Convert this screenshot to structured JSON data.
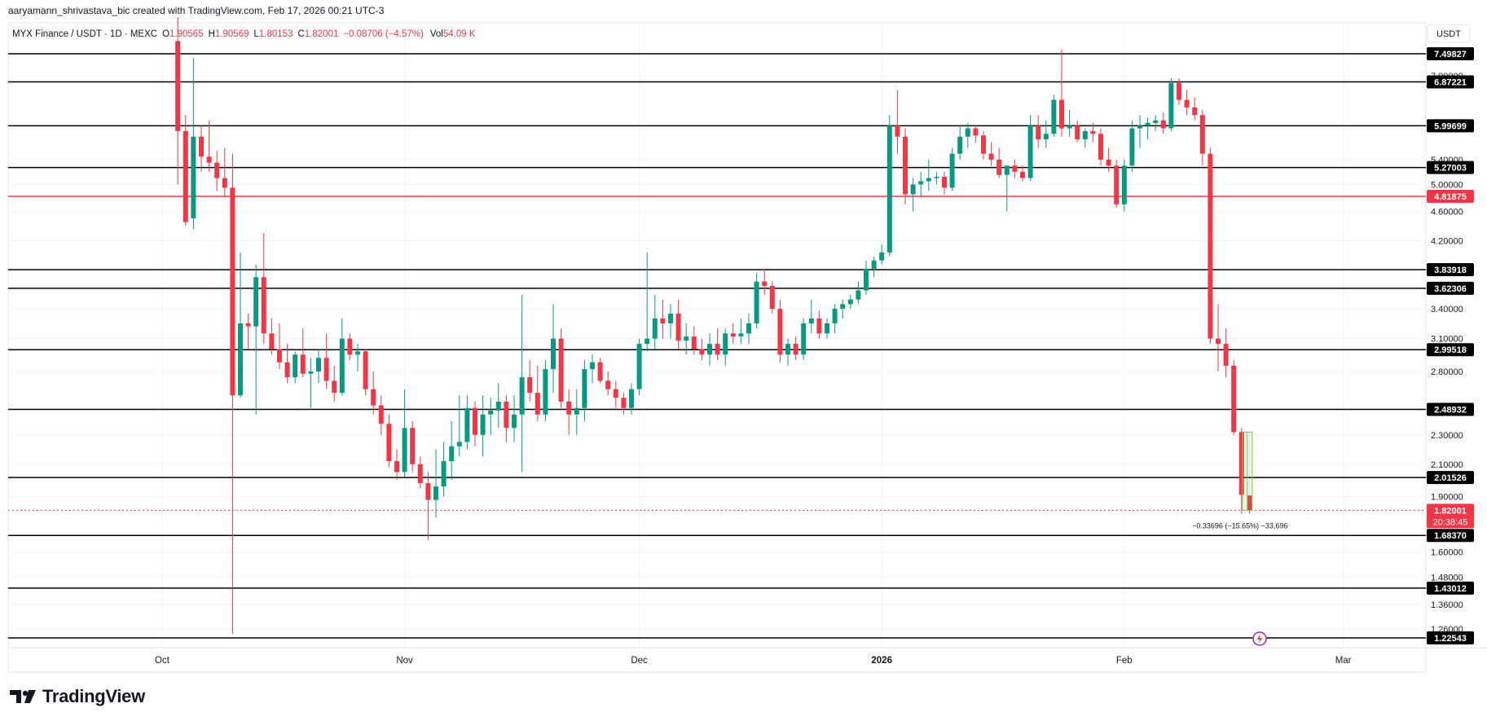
{
  "attribution": "aaryamann_shrivastava_bic created with TradingView.com, Feb 17, 2026 00:21 UTC-3",
  "legend": {
    "symbol": "MYX Finance / USDT · 1D · MEXC",
    "o_label": "O",
    "o_value": "1.90565",
    "h_label": "H",
    "h_value": "1.90569",
    "l_label": "L",
    "l_value": "1.80153",
    "c_label": "C",
    "c_value": "1.82001",
    "change": "−0.08706 (−4.57%)",
    "vol_label": "Vol",
    "vol_value": "54.09 K"
  },
  "currency_label": "USDT",
  "brand": "TradingView",
  "measure_label": "−0.33696 (−15.65%) −33,696",
  "colors": {
    "up": "#089981",
    "down": "#f23645",
    "axis_text": "#131722",
    "grid": "#f0f3fa",
    "level_line": "#000000",
    "red_line": "#f23645"
  },
  "chart_data": {
    "type": "candlestick",
    "x_ticks": [
      {
        "label": "Oct",
        "date": "2025-10-01"
      },
      {
        "label": "Nov",
        "date": "2025-11-01"
      },
      {
        "label": "Dec",
        "date": "2025-12-01"
      },
      {
        "label": "2026",
        "date": "2026-01-01"
      },
      {
        "label": "Feb",
        "date": "2026-02-01"
      },
      {
        "label": "Mar",
        "date": "2026-03-01"
      }
    ],
    "y_ticks": [
      "7.00000",
      "5.40000",
      "5.00000",
      "4.60000",
      "4.20000",
      "3.40000",
      "3.10000",
      "2.80000",
      "2.30000",
      "2.10000",
      "1.90000",
      "1.60000",
      "1.48000",
      "1.36000",
      "1.26000"
    ],
    "levels": [
      {
        "label": "7.49827",
        "value": 7.49827
      },
      {
        "label": "6.87221",
        "value": 6.87221
      },
      {
        "label": "5.99699",
        "value": 5.99699
      },
      {
        "label": "5.27003",
        "value": 5.27003
      },
      {
        "label": "3.83918",
        "value": 3.83918
      },
      {
        "label": "3.62306",
        "value": 3.62306
      },
      {
        "label": "2.99518",
        "value": 2.99518
      },
      {
        "label": "2.48932",
        "value": 2.48932
      },
      {
        "label": "2.01526",
        "value": 2.01526
      },
      {
        "label": "1.68370",
        "value": 1.6837
      },
      {
        "label": "1.43012",
        "value": 1.43012
      },
      {
        "label": "1.22543",
        "value": 1.22543
      }
    ],
    "red_level": {
      "label": "4.81875",
      "value": 4.81875
    },
    "current": {
      "label": "1.82001",
      "value": 1.82001,
      "countdown": "20:38:45"
    },
    "candles": [
      {
        "d": "2025-10-03",
        "o": 7.8,
        "h": 8.4,
        "l": 5.0,
        "c": 5.9
      },
      {
        "d": "2025-10-04",
        "o": 5.9,
        "h": 6.2,
        "l": 4.4,
        "c": 4.45
      },
      {
        "d": "2025-10-05",
        "o": 4.5,
        "h": 7.4,
        "l": 4.35,
        "c": 5.8
      },
      {
        "d": "2025-10-06",
        "o": 5.8,
        "h": 6.0,
        "l": 5.2,
        "c": 5.45
      },
      {
        "d": "2025-10-07",
        "o": 5.45,
        "h": 6.1,
        "l": 5.2,
        "c": 5.35
      },
      {
        "d": "2025-10-08",
        "o": 5.35,
        "h": 5.55,
        "l": 4.9,
        "c": 5.1
      },
      {
        "d": "2025-10-09",
        "o": 5.1,
        "h": 5.6,
        "l": 4.8,
        "c": 4.95
      },
      {
        "d": "2025-10-10",
        "o": 4.95,
        "h": 5.5,
        "l": 1.24,
        "c": 2.6
      },
      {
        "d": "2025-10-11",
        "o": 2.6,
        "h": 4.05,
        "l": 2.58,
        "c": 3.25
      },
      {
        "d": "2025-10-12",
        "o": 3.25,
        "h": 3.35,
        "l": 3.0,
        "c": 3.22
      },
      {
        "d": "2025-10-13",
        "o": 3.22,
        "h": 3.9,
        "l": 2.45,
        "c": 3.75
      },
      {
        "d": "2025-10-14",
        "o": 3.75,
        "h": 4.3,
        "l": 3.05,
        "c": 3.15
      },
      {
        "d": "2025-10-15",
        "o": 3.15,
        "h": 3.3,
        "l": 2.95,
        "c": 3.0
      },
      {
        "d": "2025-10-16",
        "o": 3.0,
        "h": 3.25,
        "l": 2.82,
        "c": 2.88
      },
      {
        "d": "2025-10-17",
        "o": 2.88,
        "h": 3.05,
        "l": 2.7,
        "c": 2.75
      },
      {
        "d": "2025-10-18",
        "o": 2.75,
        "h": 2.98,
        "l": 2.7,
        "c": 2.95
      },
      {
        "d": "2025-10-19",
        "o": 2.95,
        "h": 3.2,
        "l": 2.75,
        "c": 2.78
      },
      {
        "d": "2025-10-20",
        "o": 2.78,
        "h": 2.92,
        "l": 2.5,
        "c": 2.8
      },
      {
        "d": "2025-10-21",
        "o": 2.8,
        "h": 3.0,
        "l": 2.7,
        "c": 2.92
      },
      {
        "d": "2025-10-22",
        "o": 2.92,
        "h": 3.15,
        "l": 2.65,
        "c": 2.72
      },
      {
        "d": "2025-10-23",
        "o": 2.72,
        "h": 2.85,
        "l": 2.55,
        "c": 2.62
      },
      {
        "d": "2025-10-24",
        "o": 2.62,
        "h": 3.3,
        "l": 2.6,
        "c": 3.1
      },
      {
        "d": "2025-10-25",
        "o": 3.1,
        "h": 3.15,
        "l": 2.9,
        "c": 2.95
      },
      {
        "d": "2025-10-26",
        "o": 2.95,
        "h": 3.05,
        "l": 2.8,
        "c": 2.98
      },
      {
        "d": "2025-10-27",
        "o": 2.98,
        "h": 3.0,
        "l": 2.6,
        "c": 2.65
      },
      {
        "d": "2025-10-28",
        "o": 2.65,
        "h": 2.8,
        "l": 2.45,
        "c": 2.52
      },
      {
        "d": "2025-10-29",
        "o": 2.52,
        "h": 2.6,
        "l": 2.3,
        "c": 2.38
      },
      {
        "d": "2025-10-30",
        "o": 2.38,
        "h": 2.45,
        "l": 2.08,
        "c": 2.12
      },
      {
        "d": "2025-10-31",
        "o": 2.12,
        "h": 2.2,
        "l": 2.0,
        "c": 2.05
      },
      {
        "d": "2025-11-01",
        "o": 2.05,
        "h": 2.65,
        "l": 2.02,
        "c": 2.35
      },
      {
        "d": "2025-11-02",
        "o": 2.35,
        "h": 2.4,
        "l": 2.05,
        "c": 2.1
      },
      {
        "d": "2025-11-03",
        "o": 2.1,
        "h": 2.15,
        "l": 1.95,
        "c": 1.98
      },
      {
        "d": "2025-11-04",
        "o": 1.98,
        "h": 2.05,
        "l": 1.66,
        "c": 1.88
      },
      {
        "d": "2025-11-05",
        "o": 1.88,
        "h": 2.2,
        "l": 1.78,
        "c": 1.96
      },
      {
        "d": "2025-11-06",
        "o": 1.96,
        "h": 2.25,
        "l": 1.9,
        "c": 2.12
      },
      {
        "d": "2025-11-07",
        "o": 2.12,
        "h": 2.4,
        "l": 2.0,
        "c": 2.22
      },
      {
        "d": "2025-11-08",
        "o": 2.22,
        "h": 2.6,
        "l": 2.15,
        "c": 2.25
      },
      {
        "d": "2025-11-09",
        "o": 2.25,
        "h": 2.6,
        "l": 2.2,
        "c": 2.5
      },
      {
        "d": "2025-11-10",
        "o": 2.5,
        "h": 2.55,
        "l": 2.22,
        "c": 2.3
      },
      {
        "d": "2025-11-11",
        "o": 2.3,
        "h": 2.6,
        "l": 2.15,
        "c": 2.45
      },
      {
        "d": "2025-11-12",
        "o": 2.45,
        "h": 2.58,
        "l": 2.3,
        "c": 2.48
      },
      {
        "d": "2025-11-13",
        "o": 2.48,
        "h": 2.7,
        "l": 2.35,
        "c": 2.55
      },
      {
        "d": "2025-11-14",
        "o": 2.55,
        "h": 2.6,
        "l": 2.25,
        "c": 2.35
      },
      {
        "d": "2025-11-15",
        "o": 2.35,
        "h": 2.6,
        "l": 2.25,
        "c": 2.45
      },
      {
        "d": "2025-11-16",
        "o": 2.45,
        "h": 3.55,
        "l": 2.05,
        "c": 2.75
      },
      {
        "d": "2025-11-17",
        "o": 2.75,
        "h": 2.9,
        "l": 2.55,
        "c": 2.62
      },
      {
        "d": "2025-11-18",
        "o": 2.62,
        "h": 2.85,
        "l": 2.4,
        "c": 2.45
      },
      {
        "d": "2025-11-19",
        "o": 2.45,
        "h": 2.9,
        "l": 2.4,
        "c": 2.82
      },
      {
        "d": "2025-11-20",
        "o": 2.82,
        "h": 3.45,
        "l": 2.62,
        "c": 3.1
      },
      {
        "d": "2025-11-21",
        "o": 3.1,
        "h": 3.2,
        "l": 2.5,
        "c": 2.55
      },
      {
        "d": "2025-11-22",
        "o": 2.55,
        "h": 2.65,
        "l": 2.3,
        "c": 2.45
      },
      {
        "d": "2025-11-23",
        "o": 2.45,
        "h": 2.65,
        "l": 2.3,
        "c": 2.5
      },
      {
        "d": "2025-11-24",
        "o": 2.5,
        "h": 2.9,
        "l": 2.4,
        "c": 2.82
      },
      {
        "d": "2025-11-25",
        "o": 2.82,
        "h": 2.95,
        "l": 2.7,
        "c": 2.88
      },
      {
        "d": "2025-11-26",
        "o": 2.88,
        "h": 2.92,
        "l": 2.7,
        "c": 2.72
      },
      {
        "d": "2025-11-27",
        "o": 2.72,
        "h": 2.8,
        "l": 2.6,
        "c": 2.65
      },
      {
        "d": "2025-11-28",
        "o": 2.65,
        "h": 2.72,
        "l": 2.5,
        "c": 2.58
      },
      {
        "d": "2025-11-29",
        "o": 2.58,
        "h": 2.62,
        "l": 2.45,
        "c": 2.5
      },
      {
        "d": "2025-11-30",
        "o": 2.5,
        "h": 2.7,
        "l": 2.45,
        "c": 2.65
      },
      {
        "d": "2025-12-01",
        "o": 2.65,
        "h": 3.1,
        "l": 2.6,
        "c": 3.05
      },
      {
        "d": "2025-12-02",
        "o": 3.05,
        "h": 4.05,
        "l": 2.98,
        "c": 3.1
      },
      {
        "d": "2025-12-03",
        "o": 3.1,
        "h": 3.55,
        "l": 3.0,
        "c": 3.3
      },
      {
        "d": "2025-12-04",
        "o": 3.3,
        "h": 3.5,
        "l": 3.1,
        "c": 3.25
      },
      {
        "d": "2025-12-05",
        "o": 3.25,
        "h": 3.45,
        "l": 3.1,
        "c": 3.35
      },
      {
        "d": "2025-12-06",
        "o": 3.35,
        "h": 3.5,
        "l": 3.0,
        "c": 3.08
      },
      {
        "d": "2025-12-07",
        "o": 3.08,
        "h": 3.25,
        "l": 2.95,
        "c": 3.12
      },
      {
        "d": "2025-12-08",
        "o": 3.12,
        "h": 3.22,
        "l": 2.95,
        "c": 3.0
      },
      {
        "d": "2025-12-09",
        "o": 3.0,
        "h": 3.1,
        "l": 2.9,
        "c": 2.95
      },
      {
        "d": "2025-12-10",
        "o": 2.95,
        "h": 3.15,
        "l": 2.85,
        "c": 3.05
      },
      {
        "d": "2025-12-11",
        "o": 3.05,
        "h": 3.2,
        "l": 2.9,
        "c": 2.95
      },
      {
        "d": "2025-12-12",
        "o": 2.95,
        "h": 3.2,
        "l": 2.85,
        "c": 3.15
      },
      {
        "d": "2025-12-13",
        "o": 3.15,
        "h": 3.25,
        "l": 3.05,
        "c": 3.12
      },
      {
        "d": "2025-12-14",
        "o": 3.12,
        "h": 3.3,
        "l": 3.05,
        "c": 3.15
      },
      {
        "d": "2025-12-15",
        "o": 3.15,
        "h": 3.35,
        "l": 3.05,
        "c": 3.25
      },
      {
        "d": "2025-12-16",
        "o": 3.25,
        "h": 3.8,
        "l": 3.2,
        "c": 3.7
      },
      {
        "d": "2025-12-17",
        "o": 3.7,
        "h": 3.85,
        "l": 3.55,
        "c": 3.65
      },
      {
        "d": "2025-12-18",
        "o": 3.65,
        "h": 3.7,
        "l": 3.35,
        "c": 3.4
      },
      {
        "d": "2025-12-19",
        "o": 3.4,
        "h": 3.5,
        "l": 2.88,
        "c": 2.95
      },
      {
        "d": "2025-12-20",
        "o": 2.95,
        "h": 3.1,
        "l": 2.85,
        "c": 3.05
      },
      {
        "d": "2025-12-21",
        "o": 3.05,
        "h": 3.12,
        "l": 2.9,
        "c": 2.95
      },
      {
        "d": "2025-12-22",
        "o": 2.95,
        "h": 3.3,
        "l": 2.9,
        "c": 3.25
      },
      {
        "d": "2025-12-23",
        "o": 3.25,
        "h": 3.5,
        "l": 3.15,
        "c": 3.3
      },
      {
        "d": "2025-12-24",
        "o": 3.3,
        "h": 3.38,
        "l": 3.1,
        "c": 3.15
      },
      {
        "d": "2025-12-25",
        "o": 3.15,
        "h": 3.3,
        "l": 3.1,
        "c": 3.25
      },
      {
        "d": "2025-12-26",
        "o": 3.25,
        "h": 3.45,
        "l": 3.15,
        "c": 3.4
      },
      {
        "d": "2025-12-27",
        "o": 3.4,
        "h": 3.5,
        "l": 3.3,
        "c": 3.45
      },
      {
        "d": "2025-12-28",
        "o": 3.45,
        "h": 3.55,
        "l": 3.4,
        "c": 3.5
      },
      {
        "d": "2025-12-29",
        "o": 3.5,
        "h": 3.7,
        "l": 3.45,
        "c": 3.6
      },
      {
        "d": "2025-12-30",
        "o": 3.6,
        "h": 3.95,
        "l": 3.55,
        "c": 3.85
      },
      {
        "d": "2025-12-31",
        "o": 3.85,
        "h": 4.0,
        "l": 3.75,
        "c": 3.95
      },
      {
        "d": "2026-01-01",
        "o": 3.95,
        "h": 4.15,
        "l": 3.9,
        "c": 4.05
      },
      {
        "d": "2026-01-02",
        "o": 4.05,
        "h": 6.2,
        "l": 4.0,
        "c": 6.0
      },
      {
        "d": "2026-01-03",
        "o": 6.0,
        "h": 6.7,
        "l": 5.5,
        "c": 5.8
      },
      {
        "d": "2026-01-04",
        "o": 5.8,
        "h": 5.95,
        "l": 4.7,
        "c": 4.85
      },
      {
        "d": "2026-01-05",
        "o": 4.85,
        "h": 5.1,
        "l": 4.6,
        "c": 5.0
      },
      {
        "d": "2026-01-06",
        "o": 5.0,
        "h": 5.2,
        "l": 4.8,
        "c": 5.05
      },
      {
        "d": "2026-01-07",
        "o": 5.05,
        "h": 5.4,
        "l": 4.9,
        "c": 5.1
      },
      {
        "d": "2026-01-08",
        "o": 5.1,
        "h": 5.2,
        "l": 5.0,
        "c": 5.12
      },
      {
        "d": "2026-01-09",
        "o": 5.12,
        "h": 5.2,
        "l": 4.85,
        "c": 4.95
      },
      {
        "d": "2026-01-10",
        "o": 4.95,
        "h": 5.6,
        "l": 4.9,
        "c": 5.5
      },
      {
        "d": "2026-01-11",
        "o": 5.5,
        "h": 6.0,
        "l": 5.4,
        "c": 5.8
      },
      {
        "d": "2026-01-12",
        "o": 5.8,
        "h": 6.05,
        "l": 5.6,
        "c": 5.95
      },
      {
        "d": "2026-01-13",
        "o": 5.95,
        "h": 6.0,
        "l": 5.7,
        "c": 5.82
      },
      {
        "d": "2026-01-14",
        "o": 5.82,
        "h": 5.9,
        "l": 5.4,
        "c": 5.5
      },
      {
        "d": "2026-01-15",
        "o": 5.5,
        "h": 5.7,
        "l": 5.3,
        "c": 5.4
      },
      {
        "d": "2026-01-16",
        "o": 5.4,
        "h": 5.6,
        "l": 5.1,
        "c": 5.15
      },
      {
        "d": "2026-01-17",
        "o": 5.15,
        "h": 5.3,
        "l": 4.6,
        "c": 5.3
      },
      {
        "d": "2026-01-18",
        "o": 5.3,
        "h": 5.4,
        "l": 5.1,
        "c": 5.2
      },
      {
        "d": "2026-01-19",
        "o": 5.2,
        "h": 5.3,
        "l": 5.05,
        "c": 5.1
      },
      {
        "d": "2026-01-20",
        "o": 5.1,
        "h": 6.2,
        "l": 5.05,
        "c": 6.0
      },
      {
        "d": "2026-01-21",
        "o": 6.0,
        "h": 6.2,
        "l": 5.6,
        "c": 5.75
      },
      {
        "d": "2026-01-22",
        "o": 5.75,
        "h": 6.1,
        "l": 5.6,
        "c": 5.85
      },
      {
        "d": "2026-01-23",
        "o": 5.85,
        "h": 6.6,
        "l": 5.8,
        "c": 6.5
      },
      {
        "d": "2026-01-24",
        "o": 6.5,
        "h": 7.6,
        "l": 5.8,
        "c": 5.95
      },
      {
        "d": "2026-01-25",
        "o": 5.95,
        "h": 6.3,
        "l": 5.8,
        "c": 6.0
      },
      {
        "d": "2026-01-26",
        "o": 6.0,
        "h": 6.1,
        "l": 5.7,
        "c": 5.75
      },
      {
        "d": "2026-01-27",
        "o": 5.75,
        "h": 5.95,
        "l": 5.6,
        "c": 5.9
      },
      {
        "d": "2026-01-28",
        "o": 5.9,
        "h": 6.05,
        "l": 5.7,
        "c": 5.85
      },
      {
        "d": "2026-01-29",
        "o": 5.85,
        "h": 5.95,
        "l": 5.3,
        "c": 5.4
      },
      {
        "d": "2026-01-30",
        "o": 5.4,
        "h": 5.6,
        "l": 5.2,
        "c": 5.3
      },
      {
        "d": "2026-01-31",
        "o": 5.3,
        "h": 5.4,
        "l": 4.65,
        "c": 4.7
      },
      {
        "d": "2026-02-01",
        "o": 4.7,
        "h": 5.4,
        "l": 4.6,
        "c": 5.3
      },
      {
        "d": "2026-02-02",
        "o": 5.3,
        "h": 6.1,
        "l": 5.2,
        "c": 5.95
      },
      {
        "d": "2026-02-03",
        "o": 5.95,
        "h": 6.2,
        "l": 5.6,
        "c": 6.0
      },
      {
        "d": "2026-02-04",
        "o": 6.0,
        "h": 6.15,
        "l": 5.75,
        "c": 6.05
      },
      {
        "d": "2026-02-05",
        "o": 6.05,
        "h": 6.2,
        "l": 5.9,
        "c": 6.1
      },
      {
        "d": "2026-02-06",
        "o": 6.1,
        "h": 6.25,
        "l": 5.85,
        "c": 5.95
      },
      {
        "d": "2026-02-07",
        "o": 5.95,
        "h": 6.95,
        "l": 5.9,
        "c": 6.85
      },
      {
        "d": "2026-02-08",
        "o": 6.85,
        "h": 6.95,
        "l": 6.4,
        "c": 6.5
      },
      {
        "d": "2026-02-09",
        "o": 6.5,
        "h": 6.7,
        "l": 6.2,
        "c": 6.35
      },
      {
        "d": "2026-02-10",
        "o": 6.35,
        "h": 6.55,
        "l": 6.1,
        "c": 6.2
      },
      {
        "d": "2026-02-11",
        "o": 6.2,
        "h": 6.3,
        "l": 5.3,
        "c": 5.5
      },
      {
        "d": "2026-02-12",
        "o": 5.5,
        "h": 5.6,
        "l": 3.05,
        "c": 3.1
      },
      {
        "d": "2026-02-13",
        "o": 3.1,
        "h": 3.45,
        "l": 2.8,
        "c": 3.05
      },
      {
        "d": "2026-02-14",
        "o": 3.05,
        "h": 3.2,
        "l": 2.75,
        "c": 2.85
      },
      {
        "d": "2026-02-15",
        "o": 2.85,
        "h": 2.9,
        "l": 2.3,
        "c": 2.32
      },
      {
        "d": "2026-02-16",
        "o": 2.32,
        "h": 2.35,
        "l": 1.8,
        "c": 1.91
      },
      {
        "d": "2026-02-17",
        "o": 1.90565,
        "h": 1.90569,
        "l": 1.80153,
        "c": 1.82001
      }
    ]
  }
}
